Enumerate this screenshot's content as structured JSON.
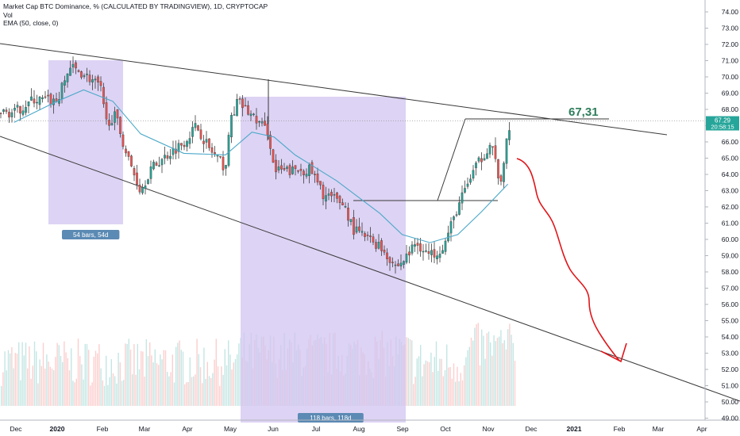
{
  "legend": {
    "title": "Market Cap BTC Dominance, % (CALCULATED BY TRADINGVIEW), 1D, CRYPTOCAP",
    "vol": "Vol",
    "ema": "EMA (50, close, 0)"
  },
  "colors": {
    "up": "#26a69a",
    "down": "#ef5350",
    "candle": "#3c3c3c",
    "ema": "#4aa8c8",
    "range_fill": "#d1c4f0",
    "annotation_text": "#2e7d5b",
    "arrow": "#e0151a",
    "price_badge": "#26a69a",
    "trendline": "#3a3a3a"
  },
  "annotation_label": "67,31",
  "range_boxes": [
    {
      "label": "54 bars, 54d"
    },
    {
      "label": "118 bars, 118d"
    }
  ],
  "price_badge": {
    "price": "67.29",
    "countdown": "20:58:15"
  },
  "chart_data": {
    "type": "candlestick",
    "y_axis": {
      "range": [
        49.5,
        74.5
      ],
      "ticks": [
        "74.00",
        "73.00",
        "72.00",
        "71.00",
        "70.00",
        "69.00",
        "68.00",
        "67.00",
        "66.00",
        "65.00",
        "64.00",
        "63.00",
        "62.00",
        "61.00",
        "60.00",
        "59.00",
        "58.00",
        "57.00",
        "56.00",
        "55.00",
        "54.00",
        "53.00",
        "52.00",
        "51.00",
        "50.00",
        "49.00"
      ]
    },
    "x_axis": {
      "ticks": [
        "Dec",
        "2020",
        "Feb",
        "Mar",
        "Apr",
        "May",
        "Jun",
        "Jul",
        "Aug",
        "Sep",
        "Oct",
        "Nov",
        "Dec",
        "2021",
        "Feb",
        "Mar",
        "Apr"
      ]
    },
    "price_path": [
      [
        "2019-12-01",
        67.8
      ],
      [
        "2019-12-15",
        68.6
      ],
      [
        "2020-01-01",
        68.5
      ],
      [
        "2020-01-10",
        70.6
      ],
      [
        "2020-01-20",
        70.2
      ],
      [
        "2020-02-01",
        69.4
      ],
      [
        "2020-02-05",
        67.2
      ],
      [
        "2020-02-12",
        67.6
      ],
      [
        "2020-02-20",
        65.2
      ],
      [
        "2020-03-01",
        63.0
      ],
      [
        "2020-03-08",
        64.3
      ],
      [
        "2020-03-20",
        65.2
      ],
      [
        "2020-04-01",
        66.0
      ],
      [
        "2020-04-10",
        67.0
      ],
      [
        "2020-04-20",
        65.5
      ],
      [
        "2020-05-01",
        64.4
      ],
      [
        "2020-05-05",
        67.5
      ],
      [
        "2020-05-10",
        68.5
      ],
      [
        "2020-05-20",
        67.6
      ],
      [
        "2020-06-01",
        66.6
      ],
      [
        "2020-06-05",
        64.2
      ],
      [
        "2020-06-15",
        64.2
      ],
      [
        "2020-07-01",
        64.3
      ],
      [
        "2020-07-10",
        62.8
      ],
      [
        "2020-07-25",
        62.2
      ],
      [
        "2020-08-01",
        60.6
      ],
      [
        "2020-08-20",
        59.6
      ],
      [
        "2020-09-01",
        58.3
      ],
      [
        "2020-09-07",
        58.8
      ],
      [
        "2020-09-15",
        59.8
      ],
      [
        "2020-09-25",
        59.0
      ],
      [
        "2020-10-05",
        59.6
      ],
      [
        "2020-10-15",
        62.0
      ],
      [
        "2020-10-25",
        64.0
      ],
      [
        "2020-11-01",
        65.0
      ],
      [
        "2020-11-08",
        66.0
      ],
      [
        "2020-11-15",
        63.2
      ],
      [
        "2020-11-19",
        66.0
      ],
      [
        "2020-11-22",
        67.29
      ]
    ],
    "ema_50": [
      [
        "2019-12-01",
        67.2
      ],
      [
        "2020-01-01",
        68.5
      ],
      [
        "2020-01-20",
        69.2
      ],
      [
        "2020-02-10",
        68.5
      ],
      [
        "2020-03-01",
        66.5
      ],
      [
        "2020-04-01",
        65.3
      ],
      [
        "2020-05-01",
        65.2
      ],
      [
        "2020-05-20",
        66.6
      ],
      [
        "2020-06-05",
        66.3
      ],
      [
        "2020-06-20",
        65.2
      ],
      [
        "2020-07-20",
        63.6
      ],
      [
        "2020-08-20",
        61.6
      ],
      [
        "2020-09-05",
        60.3
      ],
      [
        "2020-09-25",
        59.8
      ],
      [
        "2020-10-15",
        60.3
      ],
      [
        "2020-11-01",
        61.7
      ],
      [
        "2020-11-20",
        63.4
      ]
    ],
    "projection_levels": [
      62.4,
      67.31
    ]
  }
}
